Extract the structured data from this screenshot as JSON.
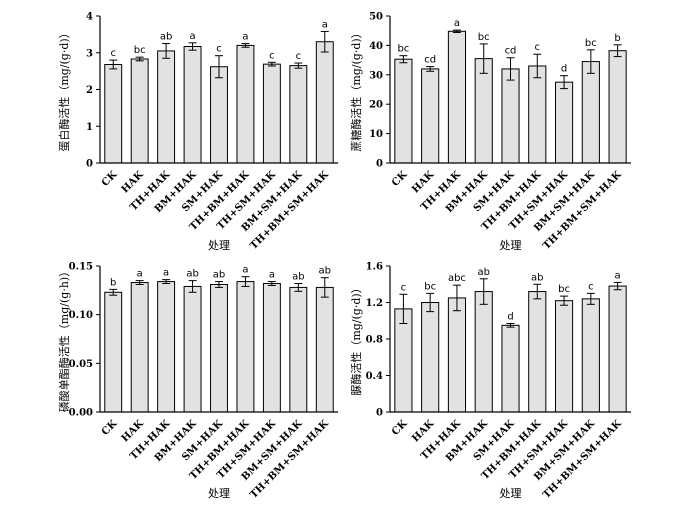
{
  "chart_data": [
    {
      "type": "bar",
      "panel": "top-left",
      "ylabel": "蛋白酶活性（mg/(g·d)）",
      "xlabel": "处理",
      "ylim": [
        0,
        4
      ],
      "yticks": [
        "0",
        "1",
        "2",
        "3",
        "4"
      ],
      "ytick_values": [
        0,
        1,
        2,
        3,
        4
      ],
      "categories": [
        "CK",
        "HAK",
        "TH+HAK",
        "BM+HAK",
        "SM+HAK",
        "TH+BM+HAK",
        "TH+SM+HAK",
        "BM+SM+HAK",
        "TH+BM+SM+HAK"
      ],
      "values": [
        2.68,
        2.83,
        3.05,
        3.17,
        2.62,
        3.2,
        2.69,
        2.65,
        3.3
      ],
      "errors": [
        0.12,
        0.05,
        0.2,
        0.1,
        0.3,
        0.05,
        0.05,
        0.07,
        0.28
      ],
      "labels": [
        "c",
        "bc",
        "ab",
        "a",
        "c",
        "a",
        "c",
        "c",
        "a"
      ]
    },
    {
      "type": "bar",
      "panel": "top-right",
      "ylabel": "蔗糖酶活性（mg/(g·d)）",
      "xlabel": "处理",
      "ylim": [
        0,
        50
      ],
      "yticks": [
        "0",
        "10",
        "20",
        "30",
        "40",
        "50"
      ],
      "ytick_values": [
        0,
        10,
        20,
        30,
        40,
        50
      ],
      "categories": [
        "CK",
        "HAK",
        "TH+HAK",
        "BM+HAK",
        "SM+HAK",
        "TH+BM+HAK",
        "TH+SM+HAK",
        "BM+SM+HAK",
        "TH+BM+SM+HAK"
      ],
      "values": [
        35.3,
        32.0,
        44.8,
        35.5,
        32.0,
        33.0,
        27.5,
        34.5,
        38.2
      ],
      "errors": [
        1.2,
        0.8,
        0.4,
        5.0,
        3.8,
        4.0,
        2.2,
        4.0,
        2.0
      ],
      "labels": [
        "bc",
        "cd",
        "a",
        "bc",
        "cd",
        "c",
        "d",
        "bc",
        "b"
      ]
    },
    {
      "type": "bar",
      "panel": "bottom-left",
      "ylabel": "磷酸单酯酶活性（mg/(g·h)）",
      "xlabel": "处理",
      "ylim": [
        0,
        0.15
      ],
      "yticks": [
        "0.00",
        "0.05",
        "0.10",
        "0.15"
      ],
      "ytick_values": [
        0,
        0.05,
        0.1,
        0.15
      ],
      "categories": [
        "CK",
        "HAK",
        "TH+HAK",
        "BM+HAK",
        "SM+HAK",
        "TH+BM+HAK",
        "TH+SM+HAK",
        "BM+SM+HAK",
        "TH+BM+SM+HAK"
      ],
      "values": [
        0.123,
        0.133,
        0.134,
        0.129,
        0.131,
        0.134,
        0.132,
        0.128,
        0.128
      ],
      "errors": [
        0.003,
        0.002,
        0.002,
        0.006,
        0.003,
        0.005,
        0.002,
        0.004,
        0.01
      ],
      "labels": [
        "b",
        "a",
        "a",
        "ab",
        "ab",
        "a",
        "a",
        "ab",
        "ab"
      ]
    },
    {
      "type": "bar",
      "panel": "bottom-right",
      "ylabel": "脲酶活性（mg/(g·d)）",
      "xlabel": "处理",
      "ylim": [
        0,
        1.6
      ],
      "yticks": [
        "0",
        "0.4",
        "0.8",
        "1.2",
        "1.6"
      ],
      "ytick_values": [
        0,
        0.4,
        0.8,
        1.2,
        1.6
      ],
      "categories": [
        "CK",
        "HAK",
        "TH+HAK",
        "BM+HAK",
        "SM+HAK",
        "TH+BM+HAK",
        "TH+SM+HAK",
        "BM+SM+HAK",
        "TH+BM+SM+HAK"
      ],
      "values": [
        1.13,
        1.2,
        1.25,
        1.32,
        0.95,
        1.32,
        1.22,
        1.24,
        1.38
      ],
      "errors": [
        0.16,
        0.1,
        0.14,
        0.14,
        0.02,
        0.08,
        0.05,
        0.06,
        0.04
      ],
      "labels": [
        "c",
        "bc",
        "abc",
        "ab",
        "d",
        "ab",
        "bc",
        "c",
        "a"
      ]
    }
  ]
}
